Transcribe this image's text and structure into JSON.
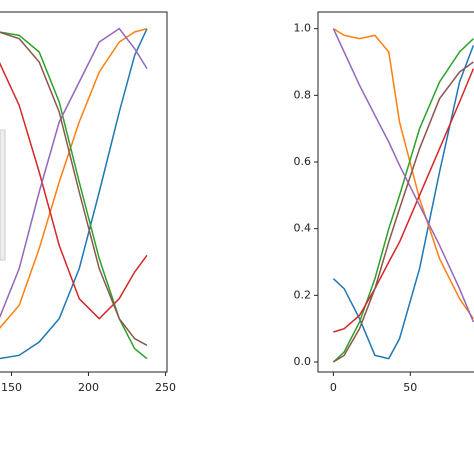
{
  "chart_data": [
    {
      "type": "line",
      "x": [
        142,
        155,
        168,
        181,
        194,
        207,
        220,
        230,
        238
      ],
      "xlim": [
        -12,
        251
      ],
      "ylim": [
        -0.03,
        1.05
      ],
      "xticks": [
        150,
        200,
        250
      ],
      "series": [
        {
          "color": "#1f77b4",
          "values": [
            0.01,
            0.02,
            0.06,
            0.13,
            0.28,
            0.51,
            0.75,
            0.92,
            1.0
          ]
        },
        {
          "color": "#ff7f0e",
          "values": [
            0.1,
            0.17,
            0.34,
            0.54,
            0.72,
            0.87,
            0.96,
            0.99,
            1.0
          ]
        },
        {
          "color": "#2ca02c",
          "values": [
            0.99,
            0.98,
            0.93,
            0.78,
            0.54,
            0.31,
            0.13,
            0.04,
            0.01
          ]
        },
        {
          "color": "#d62728",
          "values": [
            0.9,
            0.77,
            0.57,
            0.35,
            0.19,
            0.13,
            0.19,
            0.27,
            0.32
          ]
        },
        {
          "color": "#9467bd",
          "values": [
            0.13,
            0.28,
            0.51,
            0.72,
            0.84,
            0.96,
            1.0,
            0.94,
            0.88
          ]
        },
        {
          "color": "#8c564b",
          "values": [
            0.99,
            0.97,
            0.9,
            0.75,
            0.51,
            0.28,
            0.13,
            0.07,
            0.05
          ]
        }
      ]
    },
    {
      "type": "line",
      "x": [
        0,
        7,
        17,
        27,
        36,
        43,
        56,
        69,
        82,
        91
      ],
      "xlim": [
        -10,
        107
      ],
      "ylim": [
        -0.03,
        1.05
      ],
      "xticks": [
        0,
        50
      ],
      "yticks": [
        {
          "value": 0,
          "label": "0.0"
        },
        {
          "value": 0.2,
          "label": "0.2"
        },
        {
          "value": 0.4,
          "label": "0.4"
        },
        {
          "value": 0.6,
          "label": "0.6"
        },
        {
          "value": 0.8,
          "label": "0.8"
        },
        {
          "value": 1,
          "label": "1.0"
        }
      ],
      "series": [
        {
          "color": "#1f77b4",
          "values": [
            0.25,
            0.22,
            0.13,
            0.02,
            0.01,
            0.07,
            0.28,
            0.57,
            0.84,
            0.95
          ]
        },
        {
          "color": "#ff7f0e",
          "values": [
            1.0,
            0.98,
            0.97,
            0.98,
            0.93,
            0.72,
            0.49,
            0.31,
            0.19,
            0.13
          ]
        },
        {
          "color": "#2ca02c",
          "values": [
            0,
            0.03,
            0.12,
            0.25,
            0.4,
            0.5,
            0.7,
            0.84,
            0.93,
            0.97
          ]
        },
        {
          "color": "#d62728",
          "values": [
            0.09,
            0.1,
            0.14,
            0.22,
            0.3,
            0.36,
            0.5,
            0.64,
            0.78,
            0.88
          ]
        },
        {
          "color": "#9467bd",
          "values": [
            1.0,
            0.93,
            0.83,
            0.74,
            0.66,
            0.59,
            0.47,
            0.35,
            0.22,
            0.12
          ]
        },
        {
          "color": "#8c564b",
          "values": [
            0,
            0.02,
            0.1,
            0.22,
            0.36,
            0.46,
            0.64,
            0.79,
            0.87,
            0.9
          ]
        }
      ]
    }
  ]
}
